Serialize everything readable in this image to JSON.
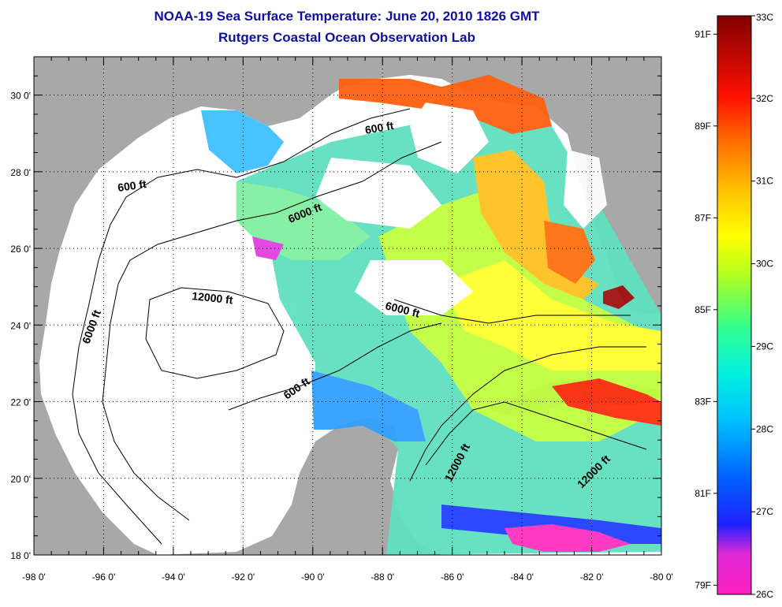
{
  "title": "NOAA-19 Sea Surface Temperature:  June 20, 2010 1826 GMT",
  "subtitle": "Rutgers Coastal Ocean Observation Lab",
  "map": {
    "lon_range": [
      -98,
      -80
    ],
    "lat_range": [
      18,
      31
    ],
    "x_ticks": [
      "-98 0'",
      "-96 0'",
      "-94 0'",
      "-92 0'",
      "-90 0'",
      "-88 0'",
      "-86 0'",
      "-84 0'",
      "-82 0'",
      "-80 0'"
    ],
    "y_ticks": [
      "30 0'",
      "28 0'",
      "26 0'",
      "24 0'",
      "22 0'",
      "20 0'",
      "18 0'"
    ],
    "grid": "dotted",
    "land_color": "#a8a8a8",
    "contour_labels": [
      "600 ft",
      "6000 ft",
      "600 ft",
      "12000 ft",
      "6000 ft",
      "600 ft",
      "6000 ft",
      "12000 ft",
      "12000 ft"
    ]
  },
  "colorbar": {
    "celsius_labels": [
      "33C",
      "32C",
      "31C",
      "30C",
      "29C",
      "28C",
      "27C",
      "26C"
    ],
    "fahrenheit_labels": [
      "91F",
      "89F",
      "87F",
      "85F",
      "83F",
      "81F",
      "79F"
    ],
    "colors": [
      "#ff20c0",
      "#b040f0",
      "#2020ff",
      "#00a0ff",
      "#00f0f0",
      "#30ff90",
      "#b0ff20",
      "#ffff00",
      "#ffc000",
      "#ff7000",
      "#ff1000",
      "#800000"
    ]
  }
}
